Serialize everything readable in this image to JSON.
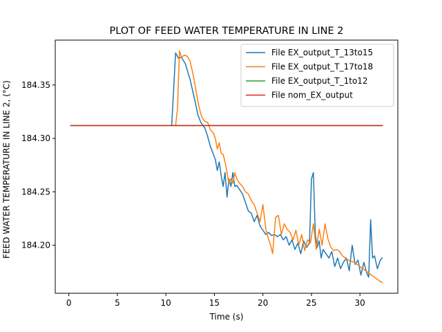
{
  "chart_data": {
    "type": "line",
    "title": "PLOT OF FEED WATER TEMPERATURE IN LINE 2",
    "xlabel": "Time (s)",
    "ylabel": "FEED WATER TEMPERATURE IN LINE 2, (°C)",
    "xlim": [
      -1.4,
      33.9
    ],
    "ylim": [
      184.155,
      184.392
    ],
    "xticks": [
      0,
      5,
      10,
      15,
      20,
      25,
      30
    ],
    "yticks": [
      184.2,
      184.25,
      184.3,
      184.35
    ],
    "xtick_labels": [
      "0",
      "5",
      "10",
      "15",
      "20",
      "25",
      "30"
    ],
    "ytick_labels": [
      "184.20",
      "184.25",
      "184.30",
      "184.35"
    ],
    "grid": false,
    "legend_position": "top-right",
    "series": [
      {
        "name": "File EX_output_T_13to15",
        "color": "#1f77b4",
        "x": [
          10.5,
          10.6,
          11.0,
          11.3,
          11.6,
          12.0,
          12.5,
          13.0,
          13.3,
          13.6,
          14.0,
          14.3,
          14.6,
          14.9,
          15.1,
          15.3,
          15.5,
          15.7,
          15.9,
          16.1,
          16.3,
          16.5,
          16.7,
          16.9,
          17.1,
          17.3,
          17.6,
          17.9,
          18.2,
          18.5,
          18.8,
          19.1,
          19.4,
          19.7,
          20.0,
          20.3,
          20.6,
          20.9,
          21.2,
          21.5,
          21.8,
          22.1,
          22.4,
          22.7,
          23.0,
          23.3,
          23.6,
          23.9,
          24.2,
          24.5,
          24.8,
          25.0,
          25.2,
          25.4,
          25.6,
          25.8,
          26.0,
          26.2,
          26.5,
          26.8,
          27.1,
          27.4,
          27.7,
          28.0,
          28.3,
          28.6,
          28.9,
          29.2,
          29.5,
          29.8,
          30.1,
          30.4,
          30.7,
          30.9,
          31.1,
          31.3,
          31.5,
          31.8,
          32.1,
          32.3
        ],
        "y": [
          184.312,
          184.312,
          184.38,
          184.375,
          184.376,
          184.37,
          184.355,
          184.335,
          184.322,
          184.315,
          184.31,
          184.302,
          184.292,
          184.285,
          184.28,
          184.27,
          184.278,
          184.265,
          184.255,
          184.268,
          184.245,
          184.262,
          184.255,
          184.268,
          184.255,
          184.256,
          184.252,
          184.248,
          184.24,
          184.232,
          184.23,
          184.222,
          184.228,
          184.218,
          184.214,
          184.21,
          184.212,
          184.209,
          184.21,
          184.208,
          184.21,
          184.205,
          184.208,
          184.2,
          184.205,
          184.196,
          184.202,
          184.192,
          184.204,
          184.198,
          184.202,
          184.262,
          184.268,
          184.21,
          184.198,
          184.204,
          184.188,
          184.196,
          184.192,
          184.188,
          184.194,
          184.18,
          184.188,
          184.178,
          184.184,
          184.188,
          184.176,
          184.2,
          184.182,
          184.186,
          184.172,
          184.184,
          184.174,
          184.17,
          184.224,
          184.188,
          184.19,
          184.178,
          184.186,
          184.188
        ]
      },
      {
        "name": "File EX_output_T_17to18",
        "color": "#ff7f0e",
        "x": [
          11.0,
          11.2,
          11.4,
          11.6,
          11.9,
          12.2,
          12.5,
          12.8,
          13.1,
          13.4,
          13.7,
          14.0,
          14.3,
          14.6,
          14.9,
          15.1,
          15.3,
          15.5,
          15.7,
          15.9,
          16.1,
          16.3,
          16.5,
          16.7,
          16.9,
          17.1,
          17.3,
          17.6,
          17.9,
          18.2,
          18.5,
          18.8,
          19.1,
          19.4,
          19.7,
          20.0,
          20.3,
          20.6,
          20.8,
          21.0,
          21.3,
          21.6,
          21.9,
          22.2,
          22.5,
          22.8,
          23.1,
          23.4,
          23.7,
          24.0,
          24.3,
          24.6,
          24.9,
          25.2,
          25.5,
          25.8,
          26.1,
          26.4,
          26.7,
          27.0,
          27.3,
          27.6,
          27.9,
          28.2,
          28.5,
          28.8,
          29.1,
          29.4,
          29.7,
          30.0,
          30.3,
          30.6,
          30.9,
          31.2,
          31.5,
          31.8,
          32.1,
          32.3
        ],
        "y": [
          184.312,
          184.328,
          184.382,
          184.376,
          184.378,
          184.377,
          184.372,
          184.36,
          184.345,
          184.33,
          184.32,
          184.316,
          184.315,
          184.308,
          184.305,
          184.3,
          184.29,
          184.296,
          184.286,
          184.285,
          184.278,
          184.268,
          184.258,
          184.262,
          184.258,
          184.268,
          184.262,
          184.258,
          184.255,
          184.25,
          184.248,
          184.242,
          184.238,
          184.23,
          184.222,
          184.238,
          184.215,
          184.205,
          184.2,
          184.192,
          184.226,
          184.228,
          184.21,
          184.22,
          184.215,
          184.212,
          184.205,
          184.214,
          184.2,
          184.21,
          184.195,
          184.205,
          184.202,
          184.22,
          184.196,
          184.215,
          184.2,
          184.22,
          184.206,
          184.198,
          184.195,
          184.196,
          184.194,
          184.19,
          184.188,
          184.186,
          184.185,
          184.184,
          184.182,
          184.18,
          184.178,
          184.176,
          184.174,
          184.172,
          184.17,
          184.168,
          184.166,
          184.165
        ]
      },
      {
        "name": "File EX_output_T_1to12",
        "color": "#2ca02c",
        "x": [
          0.2,
          32.3
        ],
        "y": [
          184.312,
          184.312
        ]
      },
      {
        "name": "File nom_EX_output",
        "color": "#d62728",
        "x": [
          0.2,
          32.3
        ],
        "y": [
          184.312,
          184.312
        ]
      }
    ]
  }
}
